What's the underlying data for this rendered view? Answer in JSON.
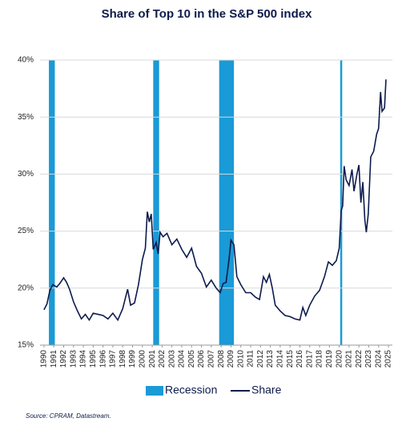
{
  "chart_data": {
    "type": "line",
    "title": "Share of Top 10 in the S&P 500 index",
    "note": "Source: CPRAM, Datastream.",
    "bands": {
      "name": "Recession",
      "color": "#1a9ad6",
      "ranges": [
        [
          1990.5,
          1991.1
        ],
        [
          2001.1,
          2001.7
        ],
        [
          2007.8,
          2009.3
        ],
        [
          2020.1,
          2020.3
        ]
      ]
    },
    "series": [
      {
        "name": "Share",
        "color": "#0d1b4c",
        "x": [
          1990.0,
          1990.3,
          1990.6,
          1990.9,
          1991.3,
          1991.6,
          1992.0,
          1992.3,
          1992.6,
          1993.0,
          1993.4,
          1993.8,
          1994.2,
          1994.6,
          1995.0,
          1995.5,
          1996.0,
          1996.5,
          1997.0,
          1997.5,
          1998.0,
          1998.5,
          1998.8,
          1999.2,
          1999.6,
          2000.0,
          2000.3,
          2000.5,
          2000.7,
          2000.9,
          2001.1,
          2001.4,
          2001.6,
          2001.8,
          2002.1,
          2002.5,
          2003.0,
          2003.5,
          2004.0,
          2004.5,
          2005.0,
          2005.5,
          2006.0,
          2006.5,
          2007.0,
          2007.5,
          2007.9,
          2008.2,
          2008.5,
          2008.8,
          2009.0,
          2009.3,
          2009.6,
          2010.0,
          2010.5,
          2011.0,
          2011.5,
          2011.9,
          2012.3,
          2012.6,
          2012.9,
          2013.2,
          2013.5,
          2014.0,
          2014.5,
          2015.0,
          2015.5,
          2016.0,
          2016.3,
          2016.6,
          2017.0,
          2017.5,
          2018.0,
          2018.5,
          2018.9,
          2019.3,
          2019.7,
          2020.0,
          2020.2,
          2020.35,
          2020.5,
          2020.7,
          2021.0,
          2021.3,
          2021.5,
          2021.8,
          2022.0,
          2022.2,
          2022.4,
          2022.6,
          2022.75,
          2022.95,
          2023.2,
          2023.5,
          2023.8,
          2024.0,
          2024.2,
          2024.35,
          2024.6,
          2024.75
        ],
        "values": [
          18.1,
          18.6,
          19.8,
          20.3,
          20.1,
          20.4,
          20.9,
          20.5,
          19.9,
          18.8,
          18.0,
          17.3,
          17.7,
          17.2,
          17.8,
          17.7,
          17.6,
          17.3,
          17.8,
          17.2,
          18.2,
          19.9,
          18.5,
          18.7,
          20.3,
          22.5,
          23.5,
          26.7,
          25.8,
          26.5,
          23.4,
          24.0,
          23.0,
          24.9,
          24.5,
          24.8,
          23.8,
          24.3,
          23.4,
          22.7,
          23.5,
          21.9,
          21.3,
          20.1,
          20.7,
          20.0,
          19.6,
          20.4,
          20.5,
          22.5,
          24.2,
          23.8,
          21.0,
          20.3,
          19.6,
          19.6,
          19.2,
          19.0,
          21.0,
          20.5,
          21.2,
          20.0,
          18.5,
          18.0,
          17.6,
          17.5,
          17.3,
          17.2,
          18.3,
          17.6,
          18.5,
          19.3,
          19.8,
          21.0,
          22.3,
          22.0,
          22.4,
          23.5,
          26.8,
          27.2,
          30.7,
          29.5,
          29.0,
          30.4,
          28.5,
          30.0,
          30.8,
          27.5,
          29.3,
          26.0,
          24.9,
          26.5,
          31.5,
          32.0,
          33.5,
          34.0,
          37.2,
          35.5,
          35.8,
          38.3
        ]
      }
    ],
    "xlim": [
      1989.6,
      2025.4
    ],
    "xticks": [
      1990,
      1991,
      1992,
      1993,
      1994,
      1995,
      1996,
      1997,
      1998,
      1999,
      2000,
      2001,
      2002,
      2003,
      2004,
      2005,
      2006,
      2007,
      2008,
      2009,
      2010,
      2011,
      2012,
      2013,
      2014,
      2015,
      2016,
      2017,
      2018,
      2019,
      2020,
      2021,
      2022,
      2023,
      2024,
      2025
    ],
    "ylim": [
      15,
      40
    ],
    "yticks": [
      {
        "value": 15,
        "label": "15%"
      },
      {
        "value": 20,
        "label": "20%"
      },
      {
        "value": 25,
        "label": "25%"
      },
      {
        "value": 30,
        "label": "30%"
      },
      {
        "value": 35,
        "label": "35%"
      },
      {
        "value": 40,
        "label": "40%"
      }
    ],
    "grid": true
  }
}
